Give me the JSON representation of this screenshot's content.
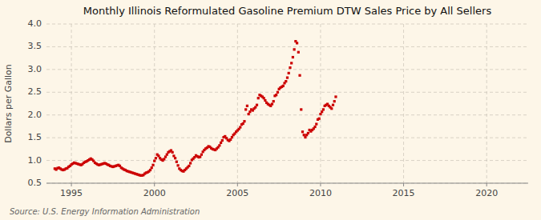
{
  "chart_data": {
    "type": "scatter",
    "title": "Monthly Illinois Reformulated Gasoline Premium DTW Sales Price by All Sellers",
    "ylabel": "Dollars per Gallon",
    "source": "Source: U.S. Energy Information Administration",
    "color": "#cc0000",
    "marker": "square",
    "grid": true,
    "xlim": [
      1993.5,
      2022.5
    ],
    "xticks": [
      1995,
      2000,
      2005,
      2010,
      2015,
      2020
    ],
    "ylim": [
      0.5,
      4.0
    ],
    "yticks": [
      0.5,
      {
        "value": 1.0,
        "label": "1.0"
      },
      1.5,
      {
        "value": 2.0,
        "label": "2.0"
      },
      2.5,
      {
        "value": 3.0,
        "label": "3.0"
      },
      3.5,
      {
        "value": 4.0,
        "label": "4.0"
      }
    ],
    "x": [
      1994.0,
      1994.083,
      1994.167,
      1994.25,
      1994.333,
      1994.417,
      1994.5,
      1994.583,
      1994.667,
      1994.75,
      1994.833,
      1994.917,
      1995.0,
      1995.083,
      1995.167,
      1995.25,
      1995.333,
      1995.417,
      1995.5,
      1995.583,
      1995.667,
      1995.75,
      1995.833,
      1995.917,
      1996.0,
      1996.083,
      1996.167,
      1996.25,
      1996.333,
      1996.417,
      1996.5,
      1996.583,
      1996.667,
      1996.75,
      1996.833,
      1996.917,
      1997.0,
      1997.083,
      1997.167,
      1997.25,
      1997.333,
      1997.417,
      1997.5,
      1997.583,
      1997.667,
      1997.75,
      1997.833,
      1997.917,
      1998.0,
      1998.083,
      1998.167,
      1998.25,
      1998.333,
      1998.417,
      1998.5,
      1998.583,
      1998.667,
      1998.75,
      1998.833,
      1998.917,
      1999.0,
      1999.083,
      1999.167,
      1999.25,
      1999.333,
      1999.417,
      1999.5,
      1999.583,
      1999.667,
      1999.75,
      1999.833,
      1999.917,
      2000.0,
      2000.083,
      2000.167,
      2000.25,
      2000.333,
      2000.417,
      2000.5,
      2000.583,
      2000.667,
      2000.75,
      2000.833,
      2000.917,
      2001.0,
      2001.083,
      2001.167,
      2001.25,
      2001.333,
      2001.417,
      2001.5,
      2001.583,
      2001.667,
      2001.75,
      2001.833,
      2001.917,
      2002.0,
      2002.083,
      2002.167,
      2002.25,
      2002.333,
      2002.417,
      2002.5,
      2002.583,
      2002.667,
      2002.75,
      2002.833,
      2002.917,
      2003.0,
      2003.083,
      2003.167,
      2003.25,
      2003.333,
      2003.417,
      2003.5,
      2003.583,
      2003.667,
      2003.75,
      2003.833,
      2003.917,
      2004.0,
      2004.083,
      2004.167,
      2004.25,
      2004.333,
      2004.417,
      2004.5,
      2004.583,
      2004.667,
      2004.75,
      2004.833,
      2004.917,
      2005.0,
      2005.083,
      2005.167,
      2005.25,
      2005.333,
      2005.417,
      2005.5,
      2005.583,
      2005.667,
      2005.75,
      2005.833,
      2005.917,
      2006.0,
      2006.083,
      2006.167,
      2006.25,
      2006.333,
      2006.417,
      2006.5,
      2006.583,
      2006.667,
      2006.75,
      2006.833,
      2006.917,
      2007.0,
      2007.083,
      2007.167,
      2007.25,
      2007.333,
      2007.417,
      2007.5,
      2007.583,
      2007.667,
      2007.75,
      2007.833,
      2007.917,
      2008.0,
      2008.083,
      2008.167,
      2008.25,
      2008.333,
      2008.417,
      2008.5,
      2008.583,
      2008.667,
      2008.75,
      2008.833,
      2008.917,
      2009.0,
      2009.083,
      2009.167,
      2009.25,
      2009.333,
      2009.417,
      2009.5,
      2009.583,
      2009.667,
      2009.75,
      2009.833,
      2009.917,
      2010.0,
      2010.083,
      2010.167,
      2010.25,
      2010.333,
      2010.417,
      2010.5,
      2010.583,
      2010.667,
      2010.75,
      2010.833,
      2010.917
    ],
    "values": [
      0.82,
      0.8,
      0.83,
      0.84,
      0.82,
      0.8,
      0.79,
      0.8,
      0.82,
      0.83,
      0.86,
      0.88,
      0.91,
      0.93,
      0.95,
      0.94,
      0.93,
      0.92,
      0.91,
      0.9,
      0.92,
      0.95,
      0.97,
      0.98,
      1.0,
      1.02,
      1.04,
      1.02,
      0.99,
      0.95,
      0.93,
      0.91,
      0.9,
      0.91,
      0.92,
      0.93,
      0.94,
      0.93,
      0.91,
      0.9,
      0.88,
      0.87,
      0.86,
      0.87,
      0.88,
      0.89,
      0.9,
      0.88,
      0.84,
      0.82,
      0.8,
      0.79,
      0.77,
      0.76,
      0.75,
      0.74,
      0.73,
      0.72,
      0.71,
      0.7,
      0.69,
      0.68,
      0.67,
      0.67,
      0.68,
      0.71,
      0.73,
      0.74,
      0.76,
      0.79,
      0.84,
      0.9,
      0.99,
      1.05,
      1.13,
      1.1,
      1.05,
      1.02,
      1.0,
      1.03,
      1.08,
      1.13,
      1.18,
      1.2,
      1.22,
      1.18,
      1.1,
      1.05,
      0.97,
      0.89,
      0.82,
      0.79,
      0.77,
      0.76,
      0.79,
      0.82,
      0.85,
      0.88,
      0.94,
      1.01,
      1.04,
      1.07,
      1.11,
      1.09,
      1.07,
      1.08,
      1.13,
      1.19,
      1.23,
      1.26,
      1.28,
      1.31,
      1.3,
      1.27,
      1.25,
      1.24,
      1.23,
      1.26,
      1.29,
      1.33,
      1.39,
      1.44,
      1.51,
      1.53,
      1.49,
      1.45,
      1.43,
      1.46,
      1.51,
      1.56,
      1.59,
      1.63,
      1.66,
      1.69,
      1.73,
      1.79,
      1.81,
      1.86,
      2.12,
      2.2,
      2.02,
      2.07,
      2.12,
      2.1,
      2.14,
      2.17,
      2.22,
      2.37,
      2.44,
      2.42,
      2.4,
      2.37,
      2.32,
      2.27,
      2.24,
      2.22,
      2.2,
      2.24,
      2.3,
      2.42,
      2.44,
      2.5,
      2.57,
      2.6,
      2.62,
      2.64,
      2.7,
      2.74,
      2.82,
      2.92,
      3.04,
      3.14,
      3.27,
      3.44,
      3.62,
      3.58,
      3.38,
      2.87,
      2.12,
      1.63,
      1.56,
      1.51,
      1.56,
      1.6,
      1.67,
      1.64,
      1.67,
      1.7,
      1.74,
      1.8,
      1.9,
      1.92,
      2.02,
      2.07,
      2.12,
      2.2,
      2.22,
      2.24,
      2.2,
      2.17,
      2.14,
      2.22,
      2.3,
      2.4
    ]
  }
}
